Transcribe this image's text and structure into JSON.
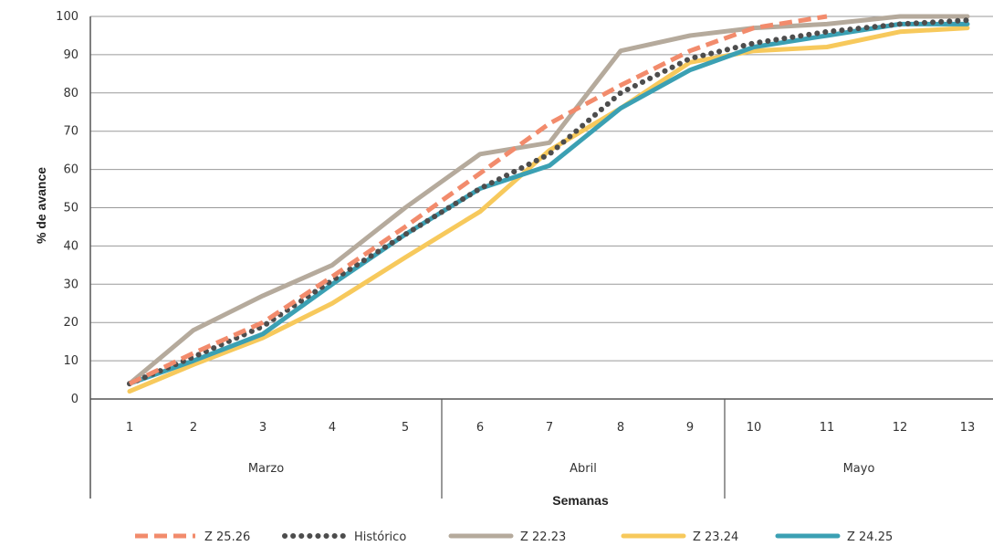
{
  "chart_data": {
    "type": "line",
    "xlabel": "Semanas",
    "ylabel": "% de avance",
    "ylim": [
      0,
      100
    ],
    "yticks": [
      "0",
      "10",
      "20",
      "30",
      "40",
      "50",
      "60",
      "70",
      "80",
      "90",
      "100"
    ],
    "grid": true,
    "legend_position": "bottom",
    "categories": [
      "1",
      "2",
      "3",
      "4",
      "5",
      "6",
      "7",
      "8",
      "9",
      "10",
      "11",
      "12",
      "13"
    ],
    "groups": [
      {
        "label": "Marzo",
        "start": 1,
        "end": 5
      },
      {
        "label": "Abril",
        "start": 6,
        "end": 9
      },
      {
        "label": "Mayo",
        "start": 10,
        "end": 13
      }
    ],
    "series": [
      {
        "name": "Z 22.23",
        "color": "#b5aa9c",
        "style": "solid",
        "values": [
          4,
          18,
          27,
          35,
          50,
          64,
          67,
          91,
          95,
          97,
          98,
          100,
          100
        ]
      },
      {
        "name": "Z 23.24",
        "color": "#f7c95c",
        "style": "solid",
        "values": [
          2,
          9,
          16,
          25,
          37,
          49,
          65,
          76,
          88,
          91,
          92,
          96,
          97
        ]
      },
      {
        "name": "Z 24.25",
        "color": "#3ba0b3",
        "style": "solid",
        "values": [
          4,
          10,
          17,
          30,
          43,
          55,
          61,
          76,
          86,
          92,
          95,
          98,
          98
        ]
      },
      {
        "name": "Histórico",
        "color": "#4d4d4d",
        "style": "dotted",
        "values": [
          4,
          11,
          19,
          31,
          43,
          55,
          64,
          80,
          89,
          93,
          96,
          98,
          99
        ]
      },
      {
        "name": "Z 25.26",
        "color": "#f28b6c",
        "style": "dashed",
        "values": [
          4,
          12,
          20,
          32,
          45,
          59,
          72,
          82,
          91,
          97,
          100,
          null,
          null
        ]
      }
    ],
    "legend_order": [
      "Z 25.26",
      "Histórico",
      "Z 22.23",
      "Z 23.24",
      "Z 24.25"
    ]
  }
}
